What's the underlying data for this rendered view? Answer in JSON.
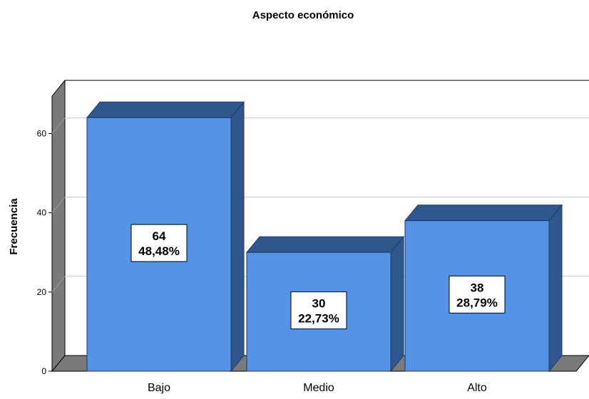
{
  "chart_data": {
    "type": "bar",
    "title": "Aspecto económico",
    "xlabel": "",
    "ylabel": "Frecuencia",
    "categories": [
      "Bajo",
      "Medio",
      "Alto"
    ],
    "values": [
      64,
      30,
      38
    ],
    "percent_labels": [
      "48,48%",
      "22,73%",
      "28,79%"
    ],
    "yticks": [
      0,
      20,
      40,
      60
    ],
    "ylim": [
      0,
      70
    ],
    "grid": true,
    "style": "3d",
    "colors": {
      "bar_front": "#5593e6",
      "bar_top": "#30568e",
      "bar_side": "#30568e",
      "wall": "#7a7a7a",
      "grid": "#c8c8c8"
    }
  }
}
